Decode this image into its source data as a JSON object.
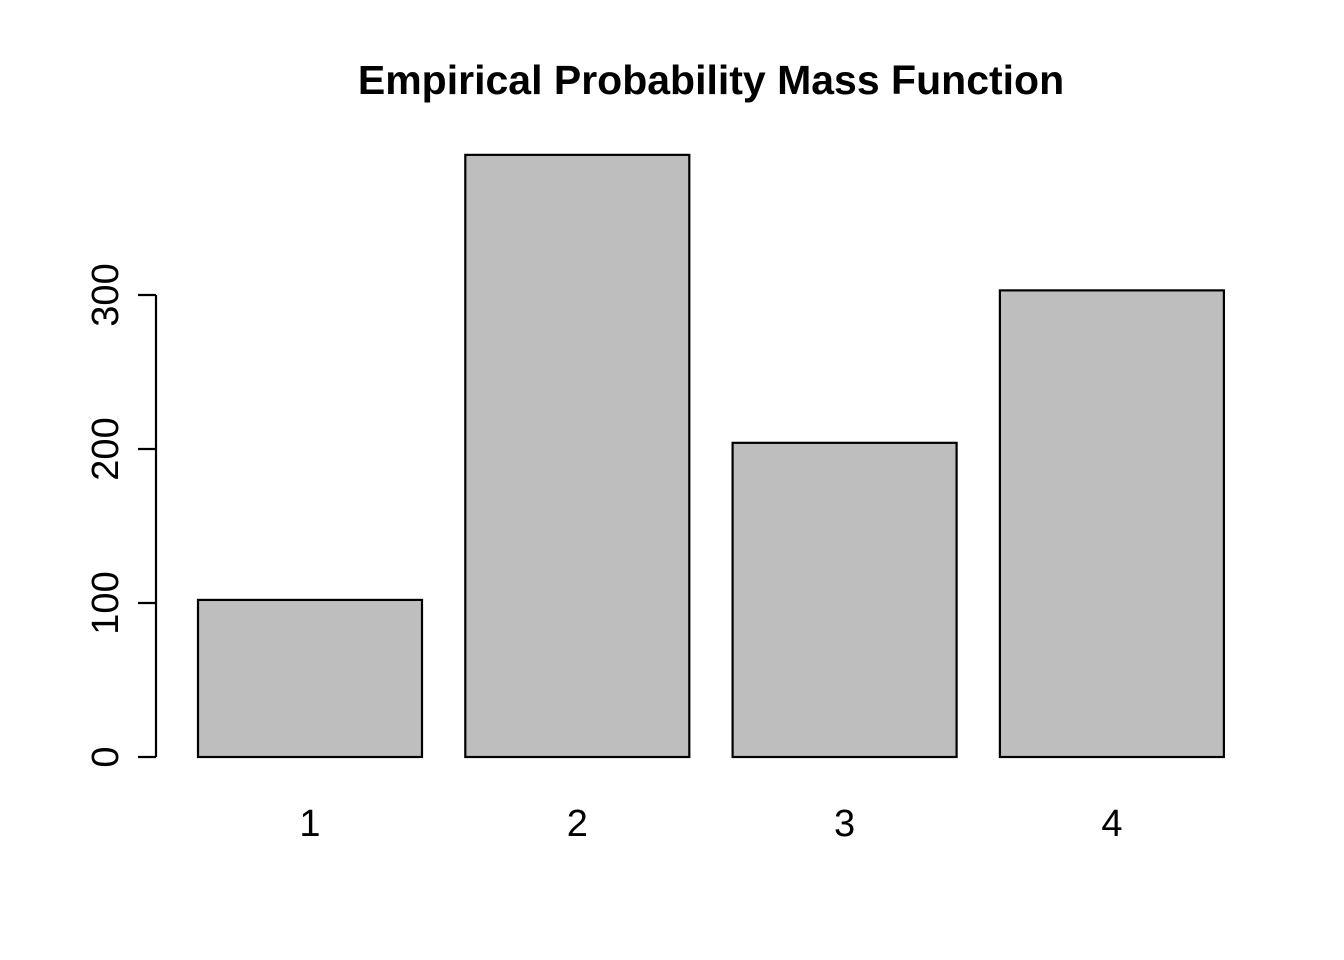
{
  "chart_data": {
    "type": "bar",
    "title": "Empirical Probability Mass Function",
    "categories": [
      "1",
      "2",
      "3",
      "4"
    ],
    "values": [
      102,
      391,
      204,
      303
    ],
    "xlabel": "",
    "ylabel": "",
    "yticks": [
      0,
      100,
      200,
      300
    ],
    "ylim": [
      0,
      391
    ],
    "grid": false,
    "legend": "none",
    "bar_fill_color": "#bebebe",
    "bar_border_color": "#000000",
    "axis_color": "#000000",
    "text_color": "#000000",
    "background_color": "#ffffff"
  }
}
